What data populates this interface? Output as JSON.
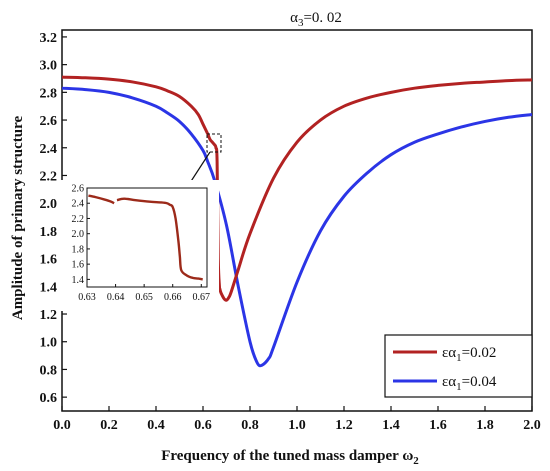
{
  "chart_data": {
    "type": "line",
    "title": {
      "alpha": "α",
      "sub": "3",
      "rest": "=0. 02"
    },
    "xlabel": {
      "main": "Frequency of the tuned mass damper ω",
      "sub": "2"
    },
    "ylabel": "Amplitude of primary structure",
    "xlim": [
      0.0,
      2.0
    ],
    "ylim": [
      0.5,
      3.25
    ],
    "xticks": [
      "0.0",
      "0.2",
      "0.4",
      "0.6",
      "0.8",
      "1.0",
      "1.2",
      "1.4",
      "1.6",
      "1.8",
      "2.0"
    ],
    "yticks": [
      "0.6",
      "0.8",
      "1.0",
      "1.2",
      "1.4",
      "1.6",
      "1.8",
      "2.0",
      "2.2",
      "2.4",
      "2.6",
      "2.8",
      "3.0",
      "3.2"
    ],
    "legend_position": "bottom-right",
    "series": [
      {
        "name": {
          "pre": "εα",
          "sub": "1",
          "post": "=0.02"
        },
        "color": "#b22222",
        "x": [
          0.0,
          0.1,
          0.2,
          0.3,
          0.4,
          0.45,
          0.5,
          0.55,
          0.58,
          0.6,
          0.62,
          0.63,
          0.64,
          0.645,
          0.65,
          0.655,
          0.66,
          0.665,
          0.67,
          0.672,
          0.675,
          0.68,
          0.69,
          0.7,
          0.71,
          0.72,
          0.75,
          0.8,
          0.9,
          1.0,
          1.1,
          1.2,
          1.3,
          1.4,
          1.5,
          1.6,
          1.7,
          1.8,
          1.9,
          2.0
        ],
        "y": [
          2.91,
          2.905,
          2.895,
          2.875,
          2.84,
          2.81,
          2.77,
          2.7,
          2.64,
          2.57,
          2.5,
          2.46,
          2.44,
          2.43,
          2.42,
          2.4,
          2.3,
          1.6,
          1.4,
          1.38,
          1.36,
          1.34,
          1.31,
          1.3,
          1.32,
          1.36,
          1.52,
          1.78,
          2.18,
          2.44,
          2.6,
          2.7,
          2.76,
          2.8,
          2.83,
          2.85,
          2.865,
          2.875,
          2.885,
          2.89
        ]
      },
      {
        "name": {
          "pre": "εα",
          "sub": "1",
          "post": "=0.04"
        },
        "color": "#2b35e6",
        "x": [
          0.0,
          0.1,
          0.2,
          0.3,
          0.4,
          0.45,
          0.5,
          0.55,
          0.6,
          0.62,
          0.65,
          0.7,
          0.75,
          0.8,
          0.83,
          0.85,
          0.88,
          0.9,
          1.0,
          1.1,
          1.2,
          1.3,
          1.4,
          1.5,
          1.6,
          1.7,
          1.8,
          1.9,
          2.0
        ],
        "y": [
          2.83,
          2.82,
          2.8,
          2.76,
          2.7,
          2.65,
          2.59,
          2.5,
          2.38,
          2.3,
          2.16,
          1.84,
          1.4,
          1.0,
          0.85,
          0.83,
          0.88,
          0.96,
          1.43,
          1.8,
          2.05,
          2.22,
          2.35,
          2.44,
          2.5,
          2.55,
          2.59,
          2.62,
          2.64
        ]
      }
    ],
    "inset": {
      "xlim": [
        0.63,
        0.672
      ],
      "ylim": [
        1.3,
        2.6
      ],
      "xticks": [
        "0.63",
        "0.64",
        "0.65",
        "0.66",
        "0.67"
      ],
      "yticks": [
        "1.4",
        "1.6",
        "1.8",
        "2.0",
        "2.2",
        "2.4",
        "2.6"
      ],
      "series_color": "#9c2a1a",
      "segments": [
        {
          "x": [
            0.6305,
            0.633,
            0.636,
            0.6385,
            0.6395
          ],
          "y": [
            2.5,
            2.48,
            2.45,
            2.42,
            2.4
          ]
        },
        {
          "x": [
            0.6405,
            0.643,
            0.647,
            0.652,
            0.656,
            0.658,
            0.659,
            0.66,
            0.661,
            0.662,
            0.6625,
            0.663,
            0.665,
            0.667,
            0.669,
            0.6705
          ],
          "y": [
            2.44,
            2.46,
            2.44,
            2.42,
            2.41,
            2.4,
            2.38,
            2.35,
            2.2,
            1.9,
            1.7,
            1.52,
            1.45,
            1.42,
            1.41,
            1.4
          ]
        }
      ]
    }
  }
}
